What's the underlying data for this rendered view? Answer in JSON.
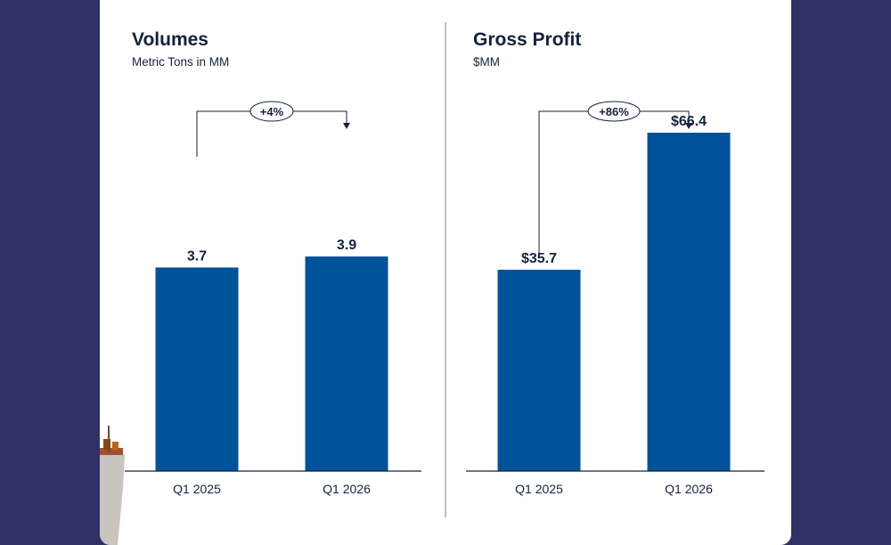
{
  "colors": {
    "background": "#2f3164",
    "card": "#ffffff",
    "bar": "#00539b",
    "text": "#14213d",
    "divider": "#7a7f8f"
  },
  "chart_data": [
    {
      "type": "bar",
      "title": "Volumes",
      "subtitle": "Metric Tons in MM",
      "categories": [
        "Q1 2025",
        "Q1 2026"
      ],
      "values": [
        3.7,
        3.9
      ],
      "value_labels": [
        "3.7",
        "3.9"
      ],
      "change_label": "+4%",
      "ylim": [
        0,
        6.15
      ],
      "grid": false
    },
    {
      "type": "bar",
      "title": "Gross Profit",
      "subtitle": "$MM",
      "categories": [
        "Q1 2025",
        "Q1 2026"
      ],
      "values": [
        35.7,
        66.4
      ],
      "value_labels": [
        "$35.7",
        "$66.4"
      ],
      "change_label": "+86%",
      "ylim": [
        0,
        60
      ]
    }
  ]
}
